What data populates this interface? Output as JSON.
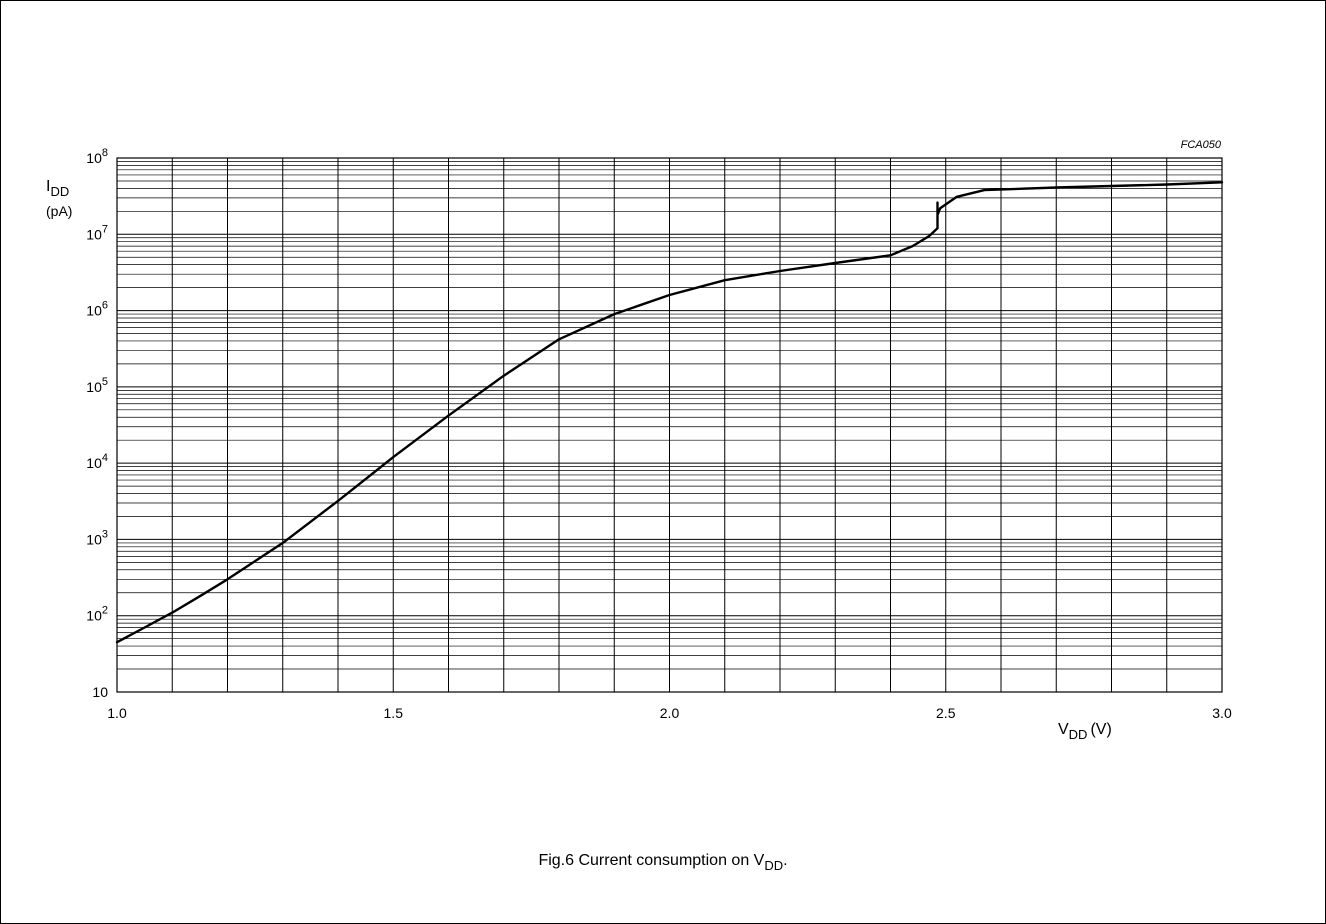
{
  "chart_data": {
    "type": "line",
    "code": "FCA050",
    "caption": {
      "prefix": "Fig.6  Current consumption on V",
      "sub": "DD",
      "suffix": "."
    },
    "ylabel": {
      "main": "I",
      "sub": "DD",
      "unit": "(pA)"
    },
    "xlabel": {
      "main": "V",
      "sub": "DD",
      "unit": "(V)"
    },
    "xlim": [
      1.0,
      3.0
    ],
    "ylim": [
      10,
      100000000
    ],
    "yscale": "log",
    "grid": true,
    "x_ticks": [
      {
        "value": 1.0,
        "label": "1.0"
      },
      {
        "value": 1.5,
        "label": "1.5"
      },
      {
        "value": 2.0,
        "label": "2.0"
      },
      {
        "value": 2.5,
        "label": "2.5"
      },
      {
        "value": 3.0,
        "label": "3.0"
      }
    ],
    "y_ticks": [
      {
        "value": 10,
        "base": "10",
        "exp": ""
      },
      {
        "value": 100,
        "base": "10",
        "exp": "2"
      },
      {
        "value": 1000,
        "base": "10",
        "exp": "3"
      },
      {
        "value": 10000,
        "base": "10",
        "exp": "4"
      },
      {
        "value": 100000,
        "base": "10",
        "exp": "5"
      },
      {
        "value": 1000000,
        "base": "10",
        "exp": "6"
      },
      {
        "value": 10000000,
        "base": "10",
        "exp": "7"
      },
      {
        "value": 100000000,
        "base": "10",
        "exp": "8"
      }
    ],
    "series": [
      {
        "x": [
          1.0,
          1.05,
          1.1,
          1.15,
          1.2,
          1.3,
          1.4,
          1.5,
          1.6,
          1.7,
          1.8,
          1.9,
          2.0,
          2.1,
          2.2,
          2.3,
          2.4,
          2.44,
          2.47,
          2.485,
          2.485,
          2.485,
          2.485,
          2.49,
          2.52,
          2.57,
          2.7,
          2.8,
          2.9,
          3.0
        ],
        "values": [
          45,
          70,
          110,
          180,
          300,
          900,
          3200,
          12000,
          42000,
          140000,
          420000,
          900000,
          1600000,
          2500000,
          3300000,
          4200000,
          5300000,
          7000000,
          9500000,
          12000000,
          26000000,
          14000000,
          18000000,
          22000000,
          31000000,
          38000000,
          41000000,
          43000000,
          45000000,
          48000000
        ]
      }
    ]
  }
}
